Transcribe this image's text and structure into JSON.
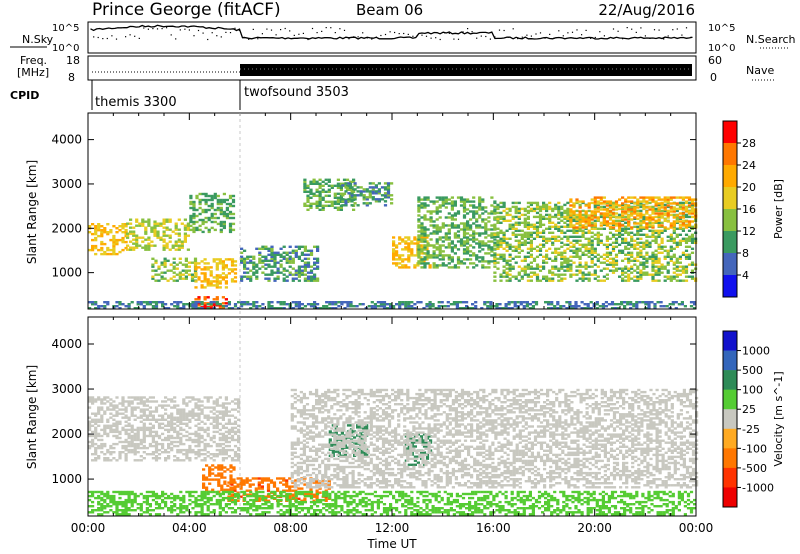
{
  "header": {
    "station": "Prince George (fitACF)",
    "beam": "Beam 06",
    "date": "22/Aug/2016"
  },
  "summary": {
    "left_label_top": "N.Sky",
    "left_ticks_top": [
      "10^5",
      "10^0"
    ],
    "right_label_top": "N.Search",
    "right_ticks_top": [
      "10^5",
      "10^0"
    ],
    "freq_label": [
      "Freq.",
      "[MHz]"
    ],
    "freq_ticks": [
      "18",
      "8"
    ],
    "nave_label": "Nave",
    "nave_ticks": [
      "60",
      "0"
    ],
    "cpid_label": "CPID",
    "modes": [
      {
        "name": "themis 3300",
        "start_hour": 0
      },
      {
        "name": "twofsound 3503",
        "start_hour": 6
      }
    ]
  },
  "chart_data": [
    {
      "type": "heatmap",
      "name": "power",
      "xlabel": "",
      "ylabel": "Slant Range [km]",
      "xlim": [
        0,
        24
      ],
      "ylim": [
        180,
        4600
      ],
      "yticks": [
        1000,
        2000,
        3000,
        4000
      ],
      "colorbar": {
        "label": "Power [dB]",
        "ticks": [
          "28",
          "24",
          "20",
          "16",
          "12",
          "8",
          "4"
        ],
        "colors": [
          "#ff0000",
          "#ff7700",
          "#ffaa00",
          "#e8cc22",
          "#88c040",
          "#3a9a60",
          "#4466bb",
          "#1111ee"
        ]
      },
      "regions": [
        {
          "t": [
            0,
            1.5
          ],
          "r": [
            1400,
            2100
          ],
          "level": 20
        },
        {
          "t": [
            1.5,
            4
          ],
          "r": [
            1500,
            2200
          ],
          "level": 16
        },
        {
          "t": [
            4,
            5.8
          ],
          "r": [
            1900,
            2800
          ],
          "level": 12
        },
        {
          "t": [
            2.5,
            4.2
          ],
          "r": [
            800,
            1300
          ],
          "level": 14
        },
        {
          "t": [
            4.2,
            5.8
          ],
          "r": [
            650,
            1300
          ],
          "level": 20
        },
        {
          "t": [
            4.2,
            5.5
          ],
          "r": [
            200,
            450
          ],
          "level": 28
        },
        {
          "t": [
            6,
            9
          ],
          "r": [
            800,
            1600
          ],
          "level": 10
        },
        {
          "t": [
            8.5,
            10.5
          ],
          "r": [
            2400,
            3100
          ],
          "level": 12
        },
        {
          "t": [
            10,
            12
          ],
          "r": [
            2500,
            3000
          ],
          "level": 10
        },
        {
          "t": [
            12,
            13.5
          ],
          "r": [
            1100,
            1800
          ],
          "level": 20
        },
        {
          "t": [
            13,
            16
          ],
          "r": [
            1100,
            2700
          ],
          "level": 12
        },
        {
          "t": [
            16,
            24
          ],
          "r": [
            800,
            2600
          ],
          "level": 14
        },
        {
          "t": [
            19,
            24
          ],
          "r": [
            2000,
            2700
          ],
          "level": 22
        },
        {
          "t": [
            0,
            24
          ],
          "r": [
            180,
            350
          ],
          "level": 8
        }
      ]
    },
    {
      "type": "heatmap",
      "name": "velocity",
      "xlabel": "Time UT",
      "ylabel": "Slant Range [km]",
      "xlim": [
        0,
        24
      ],
      "ylim": [
        180,
        4600
      ],
      "xticks": [
        "00:00",
        "04:00",
        "08:00",
        "12:00",
        "16:00",
        "20:00",
        "00:00"
      ],
      "yticks": [
        1000,
        2000,
        3000,
        4000
      ],
      "colorbar": {
        "label": "Velocity [m s^-1]",
        "ticks": [
          "1000",
          "500",
          "100",
          "25",
          "-25",
          "-100",
          "-500",
          "-1000"
        ],
        "colors": [
          "#1111cc",
          "#3366bb",
          "#2e8b57",
          "#55cc33",
          "#c8c8c0",
          "#ffaa22",
          "#ff7700",
          "#ff3300",
          "#ee0000"
        ]
      },
      "regions": [
        {
          "t": [
            0,
            6
          ],
          "r": [
            1400,
            2800
          ],
          "level": 0
        },
        {
          "t": [
            4.5,
            5.8
          ],
          "r": [
            700,
            1300
          ],
          "level": -300
        },
        {
          "t": [
            5.5,
            9.5
          ],
          "r": [
            500,
            1000
          ],
          "level": -400
        },
        {
          "t": [
            9.5,
            11
          ],
          "r": [
            1500,
            2200
          ],
          "level": 300
        },
        {
          "t": [
            12.5,
            13.5
          ],
          "r": [
            1300,
            2000
          ],
          "level": 200
        },
        {
          "t": [
            8,
            24
          ],
          "r": [
            800,
            3000
          ],
          "level": 0
        },
        {
          "t": [
            0,
            24
          ],
          "r": [
            200,
            700
          ],
          "level": 60
        }
      ]
    }
  ]
}
